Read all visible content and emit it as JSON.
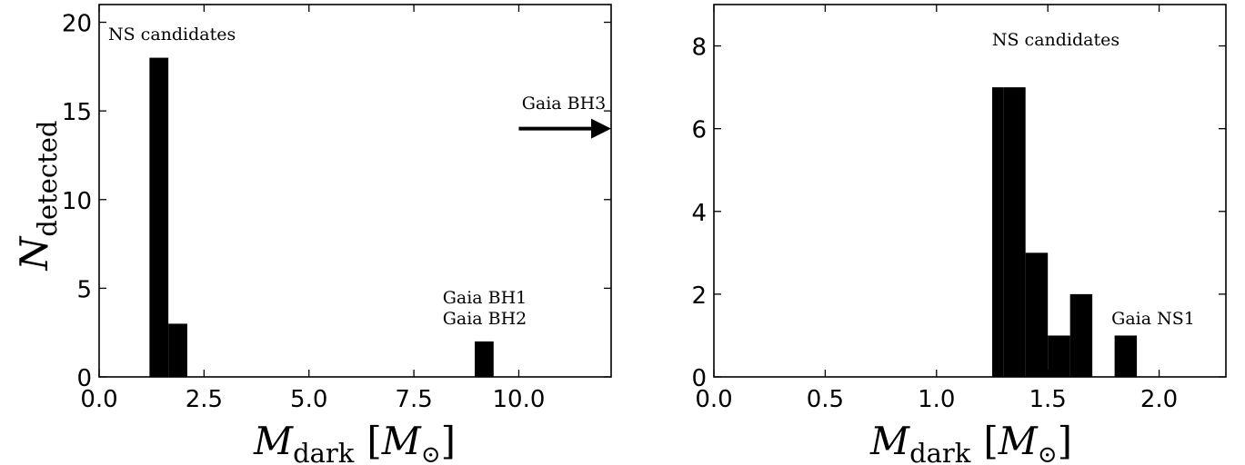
{
  "chart_data": [
    {
      "type": "bar",
      "xlim": [
        0,
        12.2
      ],
      "ylim": [
        0,
        21
      ],
      "xticks": [
        0,
        2.5,
        5,
        7.5,
        10
      ],
      "xtick_labels": [
        "0.0",
        "2.5",
        "5.0",
        "7.5",
        "10.0"
      ],
      "yticks": [
        0,
        5,
        10,
        15,
        20
      ],
      "ytick_labels": [
        "0",
        "5",
        "10",
        "15",
        "20"
      ],
      "bins": [
        {
          "x0": 1.2,
          "x1": 1.65,
          "count": 18
        },
        {
          "x0": 1.65,
          "x1": 2.1,
          "count": 3
        },
        {
          "x0": 8.95,
          "x1": 9.4,
          "count": 2
        }
      ],
      "xlabel": {
        "main": "M",
        "sub": "dark",
        "unit_main": "M",
        "unit_sub": "⊙"
      },
      "ylabel": {
        "main": "N",
        "sub": "detected"
      },
      "annotations": {
        "ns_candidates": "NS candidates",
        "gaia_bh1": "Gaia BH1",
        "gaia_bh2": "Gaia BH2",
        "gaia_bh3": "Gaia BH3"
      },
      "arrow": {
        "x_from": 10.0,
        "x_to": 12.2,
        "y": 14
      },
      "grid": false
    },
    {
      "type": "bar",
      "xlim": [
        0,
        2.3
      ],
      "ylim": [
        0,
        9
      ],
      "xticks": [
        0,
        0.5,
        1.0,
        1.5,
        2.0
      ],
      "xtick_labels": [
        "0.0",
        "0.5",
        "1.0",
        "1.5",
        "2.0"
      ],
      "yticks": [
        0,
        2,
        4,
        6,
        8
      ],
      "ytick_labels": [
        "0",
        "2",
        "4",
        "6",
        "8"
      ],
      "bins": [
        {
          "x0": 1.25,
          "x1": 1.3,
          "count": 7
        },
        {
          "x0": 1.3,
          "x1": 1.4,
          "count": 7
        },
        {
          "x0": 1.4,
          "x1": 1.5,
          "count": 3
        },
        {
          "x0": 1.5,
          "x1": 1.6,
          "count": 1
        },
        {
          "x0": 1.6,
          "x1": 1.7,
          "count": 2
        },
        {
          "x0": 1.8,
          "x1": 1.9,
          "count": 1
        }
      ],
      "xlabel": {
        "main": "M",
        "sub": "dark",
        "unit_main": "M",
        "unit_sub": "⊙"
      },
      "annotations": {
        "ns_candidates": "NS candidates",
        "gaia_ns1": "Gaia NS1"
      },
      "grid": false
    }
  ]
}
